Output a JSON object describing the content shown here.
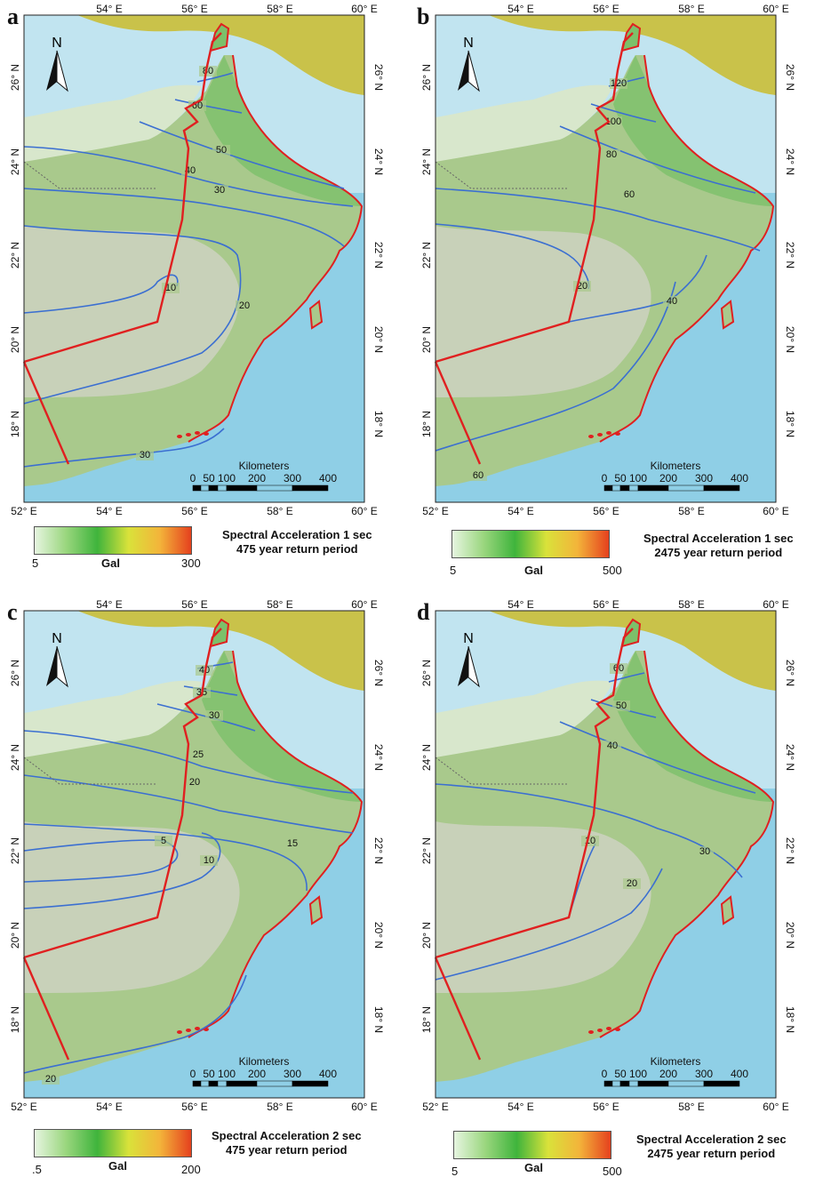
{
  "map_labels": {
    "north": "N",
    "scale_title": "Kilometers",
    "scale_ticks": [
      "0",
      "50",
      "100",
      "200",
      "300",
      "400"
    ],
    "lon_ticks": [
      "52° E",
      "54° E",
      "56° E",
      "58° E",
      "60° E"
    ],
    "lat_ticks": [
      "18° N",
      "20° N",
      "22° N",
      "24° N",
      "26° N"
    ]
  },
  "colors": {
    "sea": "#8fcfe6",
    "land": "#a9c98c",
    "interior": "#cfd3c4",
    "contour": "#3b6fd1",
    "border": "#e02020",
    "iran": "#c9c24a"
  },
  "legend_gradient": [
    "#e6f5e0",
    "#9ad67e",
    "#3fb43c",
    "#d9e23a",
    "#f3b43a",
    "#e5411e"
  ],
  "panels": [
    {
      "letter": "a",
      "legend_min": "5",
      "legend_unit": "Gal",
      "legend_max": "300",
      "title_line1": "Spectral Acceleration 1 sec",
      "title_line2": "475 year return period",
      "contour_labels": [
        "80",
        "60",
        "50",
        "40",
        "30",
        "10",
        "20",
        "30"
      ]
    },
    {
      "letter": "b",
      "legend_min": "5",
      "legend_unit": "Gal",
      "legend_max": "500",
      "title_line1": "Spectral Acceleration 1 sec",
      "title_line2": "2475 year return period",
      "contour_labels": [
        "120",
        "100",
        "80",
        "60",
        "20",
        "40",
        "60"
      ]
    },
    {
      "letter": "c",
      "legend_min": ".5",
      "legend_unit": "Gal",
      "legend_max": "200",
      "title_line1": "Spectral Acceleration 2 sec",
      "title_line2": "475 year return period",
      "contour_labels": [
        "40",
        "35",
        "30",
        "25",
        "20",
        "5",
        "10",
        "15",
        "20"
      ]
    },
    {
      "letter": "d",
      "legend_min": "5",
      "legend_unit": "Gal",
      "legend_max": "500",
      "title_line1": "Spectral Acceleration 2 sec",
      "title_line2": "2475 year return period",
      "contour_labels": [
        "60",
        "50",
        "40",
        "30",
        "10",
        "20"
      ]
    }
  ]
}
